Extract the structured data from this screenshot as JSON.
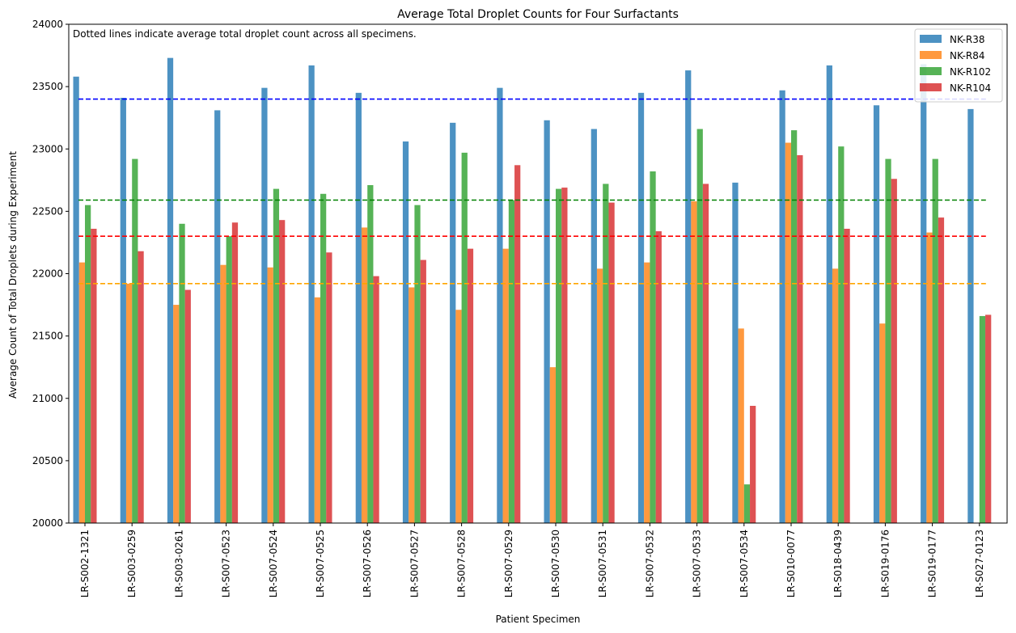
{
  "chart_data": {
    "type": "bar",
    "title": "Average Total Droplet Counts for Four Surfactants",
    "xlabel": "Patient Specimen",
    "ylabel": "Average Count of Total Droplets during Experiment",
    "annotation": "Dotted lines indicate average total droplet count across all specimens.",
    "ylim": [
      20000,
      24000
    ],
    "yticks": [
      20000,
      20500,
      21000,
      21500,
      22000,
      22500,
      23000,
      23500,
      24000
    ],
    "grid": false,
    "legend_position": "top-right",
    "categories": [
      "LR-S002-1321",
      "LR-S003-0259",
      "LR-S003-0261",
      "LR-S007-0523",
      "LR-S007-0524",
      "LR-S007-0525",
      "LR-S007-0526",
      "LR-S007-0527",
      "LR-S007-0528",
      "LR-S007-0529",
      "LR-S007-0530",
      "LR-S007-0531",
      "LR-S007-0532",
      "LR-S007-0533",
      "LR-S007-0534",
      "LR-S010-0077",
      "LR-S018-0439",
      "LR-S019-0176",
      "LR-S019-0177",
      "LR-S027-0123"
    ],
    "series": [
      {
        "name": "NK-R38",
        "color": "#1f77b4",
        "mean": 23400,
        "values": [
          23580,
          23410,
          23730,
          23310,
          23490,
          23670,
          23450,
          23060,
          23210,
          23490,
          23230,
          23160,
          23450,
          23630,
          22730,
          23470,
          23670,
          23350,
          23680,
          23320
        ]
      },
      {
        "name": "NK-R84",
        "color": "#ff7f0e",
        "mean": 21920,
        "values": [
          22090,
          21920,
          21750,
          22070,
          22050,
          21810,
          22370,
          21890,
          21710,
          22200,
          21250,
          22040,
          22090,
          22580,
          21560,
          23050,
          22040,
          21600,
          22330,
          null
        ]
      },
      {
        "name": "NK-R102",
        "color": "#2ca02c",
        "mean": 22590,
        "values": [
          22550,
          22920,
          22400,
          22300,
          22680,
          22640,
          22710,
          22550,
          22970,
          22590,
          22680,
          22720,
          22820,
          23160,
          20310,
          23150,
          23020,
          22920,
          22920,
          21660
        ]
      },
      {
        "name": "NK-R104",
        "color": "#d62728",
        "mean": 22300,
        "values": [
          22360,
          22180,
          21870,
          22410,
          22430,
          22170,
          21980,
          22110,
          22200,
          22870,
          22690,
          22570,
          22340,
          22720,
          20940,
          22950,
          22360,
          22760,
          22450,
          21670
        ]
      }
    ],
    "mean_line_colors": [
      "#0000ff",
      "#ffa500",
      "#008000",
      "#ff0000"
    ]
  }
}
